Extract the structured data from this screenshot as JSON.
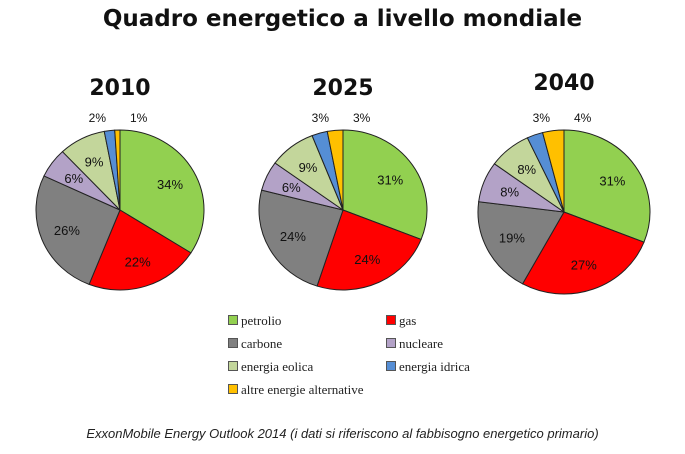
{
  "title": "Quadro energetico a livello mondiale",
  "source": "ExxonMobile Energy Outlook 2014 (i dati si riferiscono al fabbisogno energetico primario)",
  "chart_data": [
    {
      "type": "pie",
      "title": "2010",
      "categories": [
        "petrolio",
        "gas",
        "carbone",
        "nucleare",
        "energia eolica",
        "energia idrica",
        "altre energie alternative"
      ],
      "values": [
        34,
        22,
        26,
        6,
        9,
        2,
        1
      ],
      "labels": [
        "34%",
        "22%",
        "26%",
        "6%",
        "9%",
        "2%",
        "1%"
      ]
    },
    {
      "type": "pie",
      "title": "2025",
      "categories": [
        "petrolio",
        "gas",
        "carbone",
        "nucleare",
        "energia eolica",
        "energia idrica",
        "altre energie alternative"
      ],
      "values": [
        31,
        24,
        24,
        6,
        9,
        3,
        3
      ],
      "labels": [
        "31%",
        "24%",
        "24%",
        "6%",
        "9%",
        "3%",
        "3%"
      ]
    },
    {
      "type": "pie",
      "title": "2040",
      "categories": [
        "petrolio",
        "gas",
        "carbone",
        "nucleare",
        "energia eolica",
        "energia idrica",
        "altre energie alternative"
      ],
      "values": [
        31,
        27,
        19,
        8,
        8,
        3,
        4
      ],
      "labels": [
        "31%",
        "27%",
        "19%",
        "8%",
        "8%",
        "3%",
        "4%"
      ]
    }
  ],
  "legend": {
    "placement": "bottom",
    "items": [
      {
        "label": "petrolio",
        "color": "#92d050"
      },
      {
        "label": "gas",
        "color": "#ff0000"
      },
      {
        "label": "carbone",
        "color": "#808080"
      },
      {
        "label": "nucleare",
        "color": "#b3a2c7"
      },
      {
        "label": "energia eolica",
        "color": "#c3d69b"
      },
      {
        "label": "energia idrica",
        "color": "#558ed5"
      },
      {
        "label": "altre energie alternative",
        "color": "#ffc000"
      }
    ]
  }
}
